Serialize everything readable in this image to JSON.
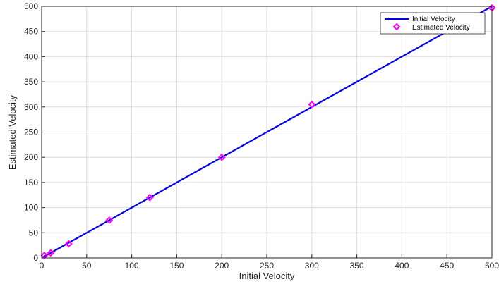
{
  "chart_data": {
    "type": "line",
    "title": "",
    "xlabel": "Initial Velocity",
    "ylabel": "Estimated Velocity",
    "xlim": [
      0,
      500
    ],
    "ylim": [
      0,
      500
    ],
    "xticks": [
      0,
      50,
      100,
      150,
      200,
      250,
      300,
      350,
      400,
      450,
      500
    ],
    "yticks": [
      0,
      50,
      100,
      150,
      200,
      250,
      300,
      350,
      400,
      450,
      500
    ],
    "grid": true,
    "legend_position": "top-right",
    "series": [
      {
        "name": "Initial Velocity",
        "kind": "line",
        "color": "#0000ee",
        "x": [
          0,
          500
        ],
        "y": [
          0,
          500
        ]
      },
      {
        "name": "Estimated Velocity",
        "kind": "markers",
        "marker": "diamond",
        "color": "#ff00ff",
        "x": [
          3,
          10,
          30,
          75,
          120,
          200,
          300,
          500
        ],
        "y": [
          5,
          10,
          28,
          75,
          120,
          200,
          305,
          497
        ]
      }
    ]
  }
}
